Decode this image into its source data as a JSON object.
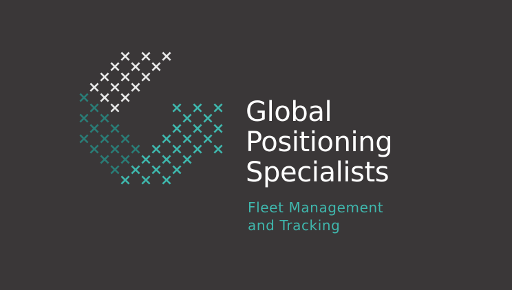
{
  "brand": {
    "name_lines": [
      "Global",
      "Positioning",
      "Specialists"
    ],
    "tagline_lines": [
      "Fleet Management",
      "and Tracking"
    ],
    "logo_icon": "cross-stitch-checkmark-icon"
  },
  "colors": {
    "background": "#3a3738",
    "name_text": "#ffffff",
    "tagline_text": "#3fb7ad",
    "mark_white": "#e9e9e9",
    "mark_dark_teal": "#2a7c76",
    "mark_bright_teal": "#3fb7ad"
  }
}
